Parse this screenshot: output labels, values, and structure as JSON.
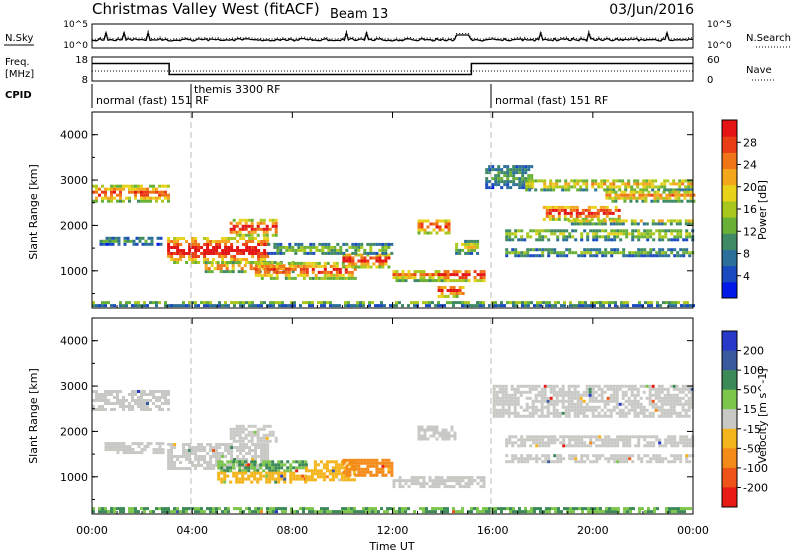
{
  "header": {
    "title": "Christmas Valley West (fitACF)",
    "beam": "Beam 13",
    "date": "03/Jun/2016"
  },
  "strip_labels": {
    "nsky": "N.Sky",
    "nsearch": "N.Search",
    "freq": "Freq.",
    "freq_unit": "[MHz]",
    "nave": "Nave",
    "cpid": "CPID"
  },
  "strip_ticks": {
    "noise_left": [
      "10^5",
      "10^0"
    ],
    "noise_right": [
      "10^5",
      "10^0"
    ],
    "freq_left": [
      "18",
      "8"
    ],
    "freq_right": [
      "60",
      "0"
    ]
  },
  "cpid_segments": [
    {
      "label": "normal (fast) 151 RF",
      "start_hour": 0.0,
      "end_hour": 3.98
    },
    {
      "label": "themis 3300 RF",
      "start_hour": 3.98,
      "end_hour": 15.95
    },
    {
      "label": "normal (fast) 151 RF",
      "start_hour": 15.95,
      "end_hour": 24.0
    }
  ],
  "chart_data": [
    {
      "type": "heatmap",
      "name": "power",
      "xlabel": "Time UT",
      "ylabel": "Slant Range [km]",
      "x_ticks": [
        "00:00",
        "04:00",
        "08:00",
        "12:00",
        "16:00",
        "20:00",
        "00:00"
      ],
      "xlim": [
        0,
        24
      ],
      "ylim": [
        180,
        4500
      ],
      "y_ticks": [
        "1000",
        "2000",
        "3000",
        "4000"
      ],
      "colorbar": {
        "label": "Power [dB]",
        "ticks": [
          "4",
          "8",
          "12",
          "16",
          "20",
          "24",
          "28"
        ],
        "colors": [
          "#0018e8",
          "#1a4ac0",
          "#2c6f9a",
          "#3f8a64",
          "#68b036",
          "#a8c81e",
          "#e8d21a",
          "#f4a61c",
          "#f07418",
          "#ea3e16",
          "#e41414"
        ]
      },
      "echo_regions": [
        {
          "t0": 0.0,
          "t1": 3.0,
          "r0": 2500,
          "r1": 2850,
          "power": 24
        },
        {
          "t0": 0.3,
          "t1": 2.8,
          "r0": 1550,
          "r1": 1700,
          "power": 10
        },
        {
          "t0": 3.0,
          "t1": 7.0,
          "r0": 1150,
          "r1": 1700,
          "power": 28
        },
        {
          "t0": 5.5,
          "t1": 7.4,
          "r0": 1750,
          "r1": 2100,
          "power": 26
        },
        {
          "t0": 4.5,
          "t1": 8.0,
          "r0": 950,
          "r1": 1150,
          "power": 22
        },
        {
          "t0": 6.5,
          "t1": 10.5,
          "r0": 800,
          "r1": 1150,
          "power": 24
        },
        {
          "t0": 10.0,
          "t1": 11.8,
          "r0": 1050,
          "r1": 1350,
          "power": 26
        },
        {
          "t0": 7.0,
          "t1": 12.0,
          "r0": 1350,
          "r1": 1550,
          "power": 14
        },
        {
          "t0": 12.0,
          "t1": 14.2,
          "r0": 750,
          "r1": 1000,
          "power": 20
        },
        {
          "t0": 13.8,
          "t1": 15.6,
          "r0": 750,
          "r1": 1000,
          "power": 28
        },
        {
          "t0": 13.8,
          "t1": 14.8,
          "r0": 400,
          "r1": 650,
          "power": 26
        },
        {
          "t0": 13.0,
          "t1": 14.2,
          "r0": 1800,
          "r1": 2100,
          "power": 24
        },
        {
          "t0": 14.5,
          "t1": 15.4,
          "r0": 1350,
          "r1": 1650,
          "power": 16
        },
        {
          "t0": 15.7,
          "t1": 17.5,
          "r0": 2800,
          "r1": 3300,
          "power": 10
        },
        {
          "t0": 17.3,
          "t1": 24.0,
          "r0": 2750,
          "r1": 3000,
          "power": 18
        },
        {
          "t0": 18.0,
          "t1": 21.0,
          "r0": 2100,
          "r1": 2400,
          "power": 26
        },
        {
          "t0": 20.5,
          "t1": 24.0,
          "r0": 2500,
          "r1": 2750,
          "power": 20
        },
        {
          "t0": 16.5,
          "t1": 24.0,
          "r0": 1650,
          "r1": 1900,
          "power": 14
        },
        {
          "t0": 16.5,
          "t1": 24.0,
          "r0": 1300,
          "r1": 1450,
          "power": 12
        },
        {
          "t0": 19.0,
          "t1": 24.0,
          "r0": 2000,
          "r1": 2100,
          "power": 18
        },
        {
          "t0": 0.0,
          "t1": 24.0,
          "r0": 200,
          "r1": 320,
          "power": 12
        }
      ]
    },
    {
      "type": "heatmap",
      "name": "velocity",
      "xlabel": "Time UT",
      "ylabel": "Slant Range [km]",
      "x_ticks": [
        "00:00",
        "04:00",
        "08:00",
        "12:00",
        "16:00",
        "20:00",
        "00:00"
      ],
      "xlim": [
        0,
        24
      ],
      "ylim": [
        180,
        4500
      ],
      "y_ticks": [
        "1000",
        "2000",
        "3000",
        "4000"
      ],
      "colorbar": {
        "label": "Velocity [m s^-1]",
        "ticks": [
          "200",
          "100",
          "50",
          "15",
          "-15",
          "-50",
          "-100",
          "-200"
        ],
        "colors": [
          "#2838c8",
          "#3a5a9e",
          "#3c8a58",
          "#7cc64c",
          "#c8c8c4",
          "#f4b41c",
          "#f48a18",
          "#ee5418",
          "#e81c14"
        ]
      },
      "echo_regions": [
        {
          "t0": 0.0,
          "t1": 3.0,
          "r0": 2450,
          "r1": 2850,
          "velocity": 0
        },
        {
          "t0": 0.5,
          "t1": 2.8,
          "r0": 1500,
          "r1": 1700,
          "velocity": 0
        },
        {
          "t0": 3.0,
          "t1": 7.0,
          "r0": 1150,
          "r1": 1700,
          "velocity": 0
        },
        {
          "t0": 5.5,
          "t1": 7.4,
          "r0": 1750,
          "r1": 2100,
          "velocity": 0
        },
        {
          "t0": 5.0,
          "t1": 8.5,
          "r0": 1100,
          "r1": 1300,
          "velocity": 30
        },
        {
          "t0": 5.0,
          "t1": 8.5,
          "r0": 850,
          "r1": 1100,
          "velocity": -30
        },
        {
          "t0": 8.5,
          "t1": 10.5,
          "r0": 900,
          "r1": 1300,
          "velocity": -40
        },
        {
          "t0": 10.0,
          "t1": 12.0,
          "r0": 1000,
          "r1": 1350,
          "velocity": -60
        },
        {
          "t0": 12.0,
          "t1": 15.6,
          "r0": 750,
          "r1": 1000,
          "velocity": 0
        },
        {
          "t0": 13.0,
          "t1": 14.5,
          "r0": 1800,
          "r1": 2100,
          "velocity": 0
        },
        {
          "t0": 16.0,
          "t1": 24.0,
          "r0": 2300,
          "r1": 3000,
          "velocity": 0
        },
        {
          "t0": 16.5,
          "t1": 24.0,
          "r0": 1650,
          "r1": 1900,
          "velocity": 0
        },
        {
          "t0": 16.5,
          "t1": 24.0,
          "r0": 1300,
          "r1": 1450,
          "velocity": 0
        },
        {
          "t0": 0.0,
          "t1": 24.0,
          "r0": 200,
          "r1": 320,
          "velocity": 30
        }
      ]
    }
  ]
}
